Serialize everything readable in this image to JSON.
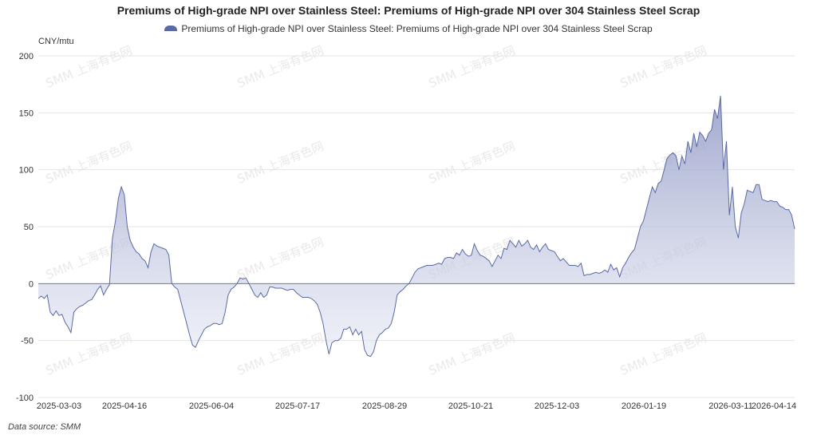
{
  "chart_data": {
    "type": "area",
    "title": "Premiums of High-grade NPI over Stainless Steel: Premiums of High-grade NPI over 304 Stainless Steel Scrap",
    "ylabel": "CNY/mtu",
    "ylim": [
      -100,
      200
    ],
    "yticks": [
      -100,
      -50,
      0,
      50,
      100,
      150,
      200
    ],
    "x_tick_labels": [
      "2025-03-03",
      "2025-04-16",
      "2025-06-04",
      "2025-07-17",
      "2025-08-29",
      "2025-10-21",
      "2025-12-03",
      "2026-01-19",
      "2026-03-11",
      "2026-04-14"
    ],
    "grid": true,
    "legend_position": "top-center",
    "series": [
      {
        "name": "Premiums of High-grade NPI over Stainless Steel: Premiums of High-grade NPI over 304 Stainless Steel Scrap",
        "color": "#5b6aa5",
        "values": [
          -13,
          -11,
          -13,
          -10,
          -25,
          -28,
          -24,
          -28,
          -27,
          -34,
          -38,
          -43,
          -25,
          -22,
          -20,
          -19,
          -17,
          -15,
          -14,
          -10,
          -5,
          -2,
          -10,
          -5,
          -1,
          40,
          55,
          75,
          85,
          78,
          50,
          38,
          32,
          28,
          26,
          22,
          20,
          14,
          28,
          35,
          33,
          32,
          31,
          30,
          25,
          0,
          -3,
          -5,
          -15,
          -25,
          -35,
          -45,
          -54,
          -56,
          -50,
          -45,
          -40,
          -38,
          -37,
          -35,
          -35,
          -36,
          -35,
          -25,
          -10,
          -5,
          -3,
          0,
          5,
          4,
          5,
          0,
          -5,
          -10,
          -12,
          -8,
          -12,
          -10,
          -3,
          -3,
          -4,
          -4,
          -4,
          -5,
          -6,
          -5,
          -5,
          -8,
          -10,
          -12,
          -12,
          -12,
          -13,
          -15,
          -18,
          -25,
          -35,
          -50,
          -62,
          -52,
          -50,
          -50,
          -48,
          -40,
          -40,
          -38,
          -45,
          -40,
          -45,
          -42,
          -58,
          -63,
          -64,
          -60,
          -50,
          -45,
          -43,
          -40,
          -39,
          -35,
          -25,
          -10,
          -7,
          -5,
          -2,
          0,
          5,
          10,
          13,
          14,
          15,
          16,
          16,
          16,
          17,
          18,
          17,
          22,
          23,
          23,
          22,
          27,
          25,
          30,
          26,
          24,
          25,
          35,
          29,
          25,
          24,
          22,
          20,
          15,
          20,
          25,
          22,
          31,
          30,
          38,
          35,
          32,
          38,
          33,
          35,
          38,
          32,
          30,
          34,
          28,
          32,
          35,
          30,
          29,
          28,
          24,
          20,
          22,
          19,
          16,
          16,
          16,
          15,
          18,
          7,
          8,
          8,
          9,
          10,
          9,
          10,
          12,
          10,
          17,
          12,
          14,
          6,
          14,
          18,
          23,
          27,
          30,
          40,
          50,
          55,
          65,
          75,
          85,
          80,
          88,
          90,
          100,
          110,
          113,
          115,
          112,
          100,
          112,
          105,
          125,
          115,
          132,
          120,
          133,
          130,
          125,
          132,
          135,
          153,
          145,
          165,
          100,
          125,
          60,
          85,
          50,
          40,
          62,
          70,
          82,
          81,
          80,
          87,
          87,
          74,
          73,
          72,
          73,
          72,
          72,
          68,
          67,
          65,
          65,
          60,
          48
        ]
      }
    ],
    "source_label": "Data source",
    "source_value": "SMM",
    "watermark": "SMM 上海有色网"
  }
}
